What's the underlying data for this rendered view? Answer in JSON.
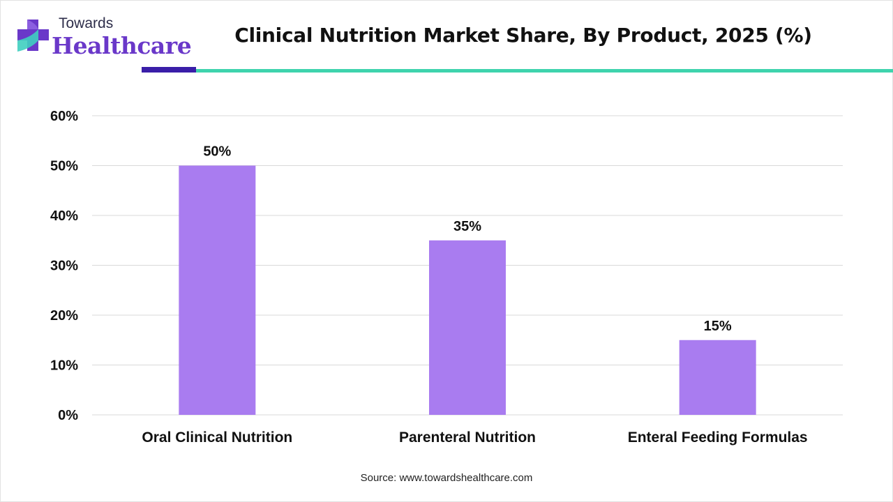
{
  "logo": {
    "line1": "Towards",
    "line2": "Healthcare"
  },
  "header": {
    "title": "Clinical Nutrition Market Share, By Product, 2025 (%)"
  },
  "colors": {
    "bar": "#a97cf0",
    "gridline": "#d9d9d9",
    "axis_text": "#111111",
    "accent_dark": "#3a1ea8",
    "accent_line": "#3fd3ad",
    "logo_purple": "#6a38c9",
    "logo_teal": "#3fcfc0"
  },
  "chart_data": {
    "type": "bar",
    "title": "Clinical Nutrition Market Share, By Product, 2025 (%)",
    "categories": [
      "Oral Clinical Nutrition",
      "Parenteral Nutrition",
      "Enteral Feeding Formulas"
    ],
    "values": [
      50,
      35,
      15
    ],
    "value_labels": [
      "50%",
      "35%",
      "15%"
    ],
    "yticks": [
      "0%",
      "10%",
      "20%",
      "30%",
      "40%",
      "50%",
      "60%"
    ],
    "ylim": [
      0,
      60
    ],
    "xlabel": "",
    "ylabel": "",
    "grid": true,
    "legend": "none"
  },
  "footer": {
    "source": "Source: www.towardshealthcare.com"
  }
}
